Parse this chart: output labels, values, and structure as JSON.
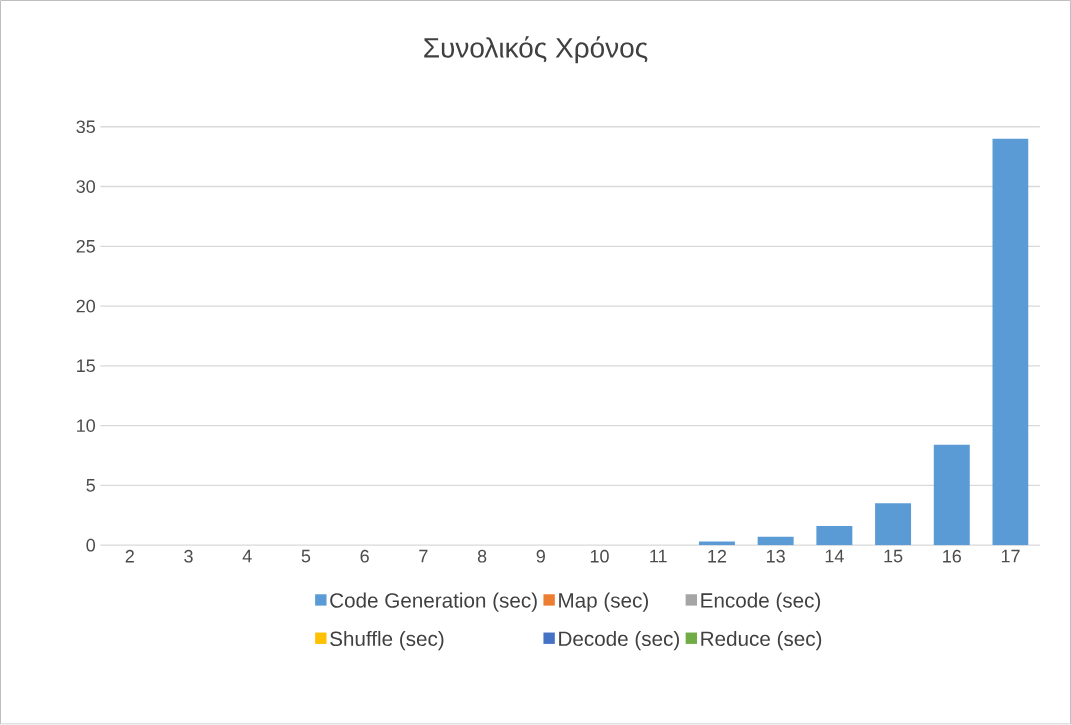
{
  "chart_data": {
    "type": "bar",
    "title": "Συνολικός Χρόνος",
    "stacked": true,
    "categories": [
      "2",
      "3",
      "4",
      "5",
      "6",
      "7",
      "8",
      "9",
      "10",
      "11",
      "12",
      "13",
      "14",
      "15",
      "16",
      "17"
    ],
    "series": [
      {
        "name": "Code Generation (sec)",
        "color": "#5b9bd5",
        "values": [
          0,
          0,
          0,
          0,
          0,
          0,
          0,
          0,
          0,
          0,
          0.3,
          0.7,
          1.6,
          3.5,
          8.4,
          34
        ]
      },
      {
        "name": "Map (sec)",
        "color": "#ed7d31",
        "values": [
          0,
          0,
          0,
          0,
          0,
          0,
          0,
          0,
          0,
          0,
          0,
          0,
          0,
          0,
          0,
          0
        ]
      },
      {
        "name": "Encode (sec)",
        "color": "#a5a5a5",
        "values": [
          0,
          0,
          0,
          0,
          0,
          0,
          0,
          0,
          0,
          0,
          0,
          0,
          0,
          0,
          0,
          0
        ]
      },
      {
        "name": "Shuffle (sec)",
        "color": "#ffc000",
        "values": [
          0,
          0,
          0,
          0,
          0,
          0,
          0,
          0,
          0,
          0,
          0,
          0,
          0,
          0,
          0,
          0
        ]
      },
      {
        "name": "Decode (sec)",
        "color": "#4472c4",
        "values": [
          0,
          0,
          0,
          0,
          0,
          0,
          0,
          0,
          0,
          0,
          0,
          0,
          0,
          0,
          0,
          0
        ]
      },
      {
        "name": "Reduce (sec)",
        "color": "#70ad47",
        "values": [
          0,
          0,
          0,
          0,
          0,
          0,
          0,
          0,
          0,
          0,
          0,
          0,
          0,
          0,
          0,
          0
        ]
      }
    ],
    "ylim": [
      0,
      35
    ],
    "yticks": [
      0,
      5,
      10,
      15,
      20,
      25,
      30,
      35
    ],
    "grid": "y",
    "legend": "bottom"
  }
}
